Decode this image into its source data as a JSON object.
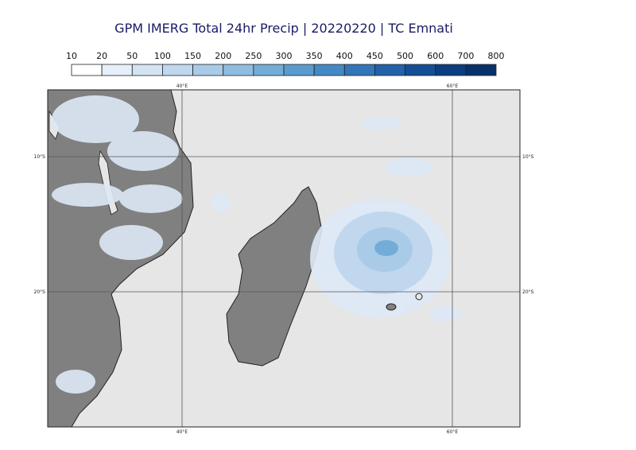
{
  "title": "GPM IMERG Total 24hr Precip | 20220220 | TC Emnati",
  "legend": {
    "levels": [
      10,
      20,
      50,
      100,
      150,
      200,
      250,
      300,
      350,
      400,
      450,
      500,
      600,
      700,
      800
    ],
    "colors": [
      "#ffffff",
      "#e6f0fa",
      "#d3e3f3",
      "#c0d7ee",
      "#a9cbe7",
      "#8fbde0",
      "#74acd8",
      "#5a9bcf",
      "#4489c5",
      "#3276b8",
      "#2162aa",
      "#144f96",
      "#0b3d80",
      "#08306b"
    ]
  },
  "grid_labels": {
    "lon": [
      "40°E",
      "60°E"
    ],
    "lat": [
      "10°S",
      "20°S"
    ]
  }
}
